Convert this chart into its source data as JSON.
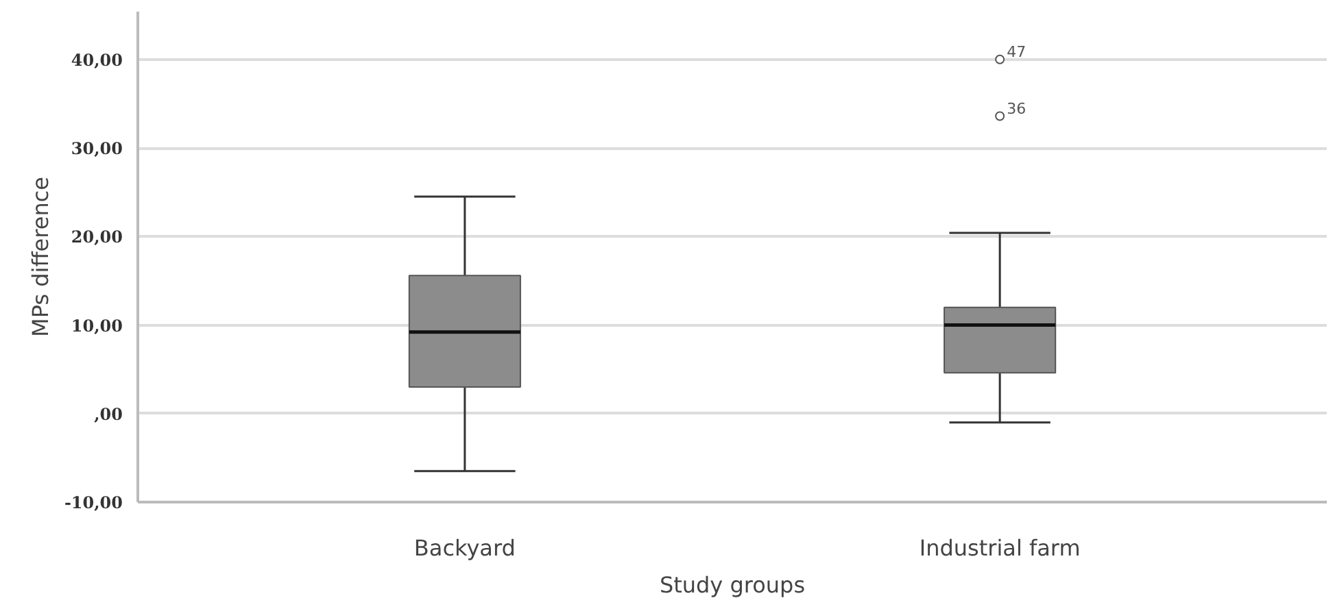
{
  "chart_data": {
    "type": "box",
    "xlabel": "Study groups",
    "ylabel": "MPs difference",
    "categories": [
      "Backyard",
      "Industrial farm"
    ],
    "boxes": [
      {
        "low": -6.5,
        "q1": 3.0,
        "median": 9.2,
        "q3": 15.6,
        "high": 24.5
      },
      {
        "low": -1.0,
        "q1": 4.6,
        "median": 10.0,
        "q3": 12.0,
        "high": 20.4,
        "outliers": [
          33.6,
          40.0
        ]
      }
    ],
    "color": "#8c8c8c",
    "annotations": [
      "36",
      "47"
    ],
    "ylim": [
      -10,
      45.4
    ],
    "yticks": [
      {
        "value": -10,
        "label": "-10,00"
      },
      {
        "value": 0,
        "label": ",00"
      },
      {
        "value": 10,
        "label": "10,00"
      },
      {
        "value": 20,
        "label": "20,00"
      },
      {
        "value": 30,
        "label": "30,00"
      },
      {
        "value": 40,
        "label": "40,00"
      }
    ],
    "grid": "y"
  }
}
